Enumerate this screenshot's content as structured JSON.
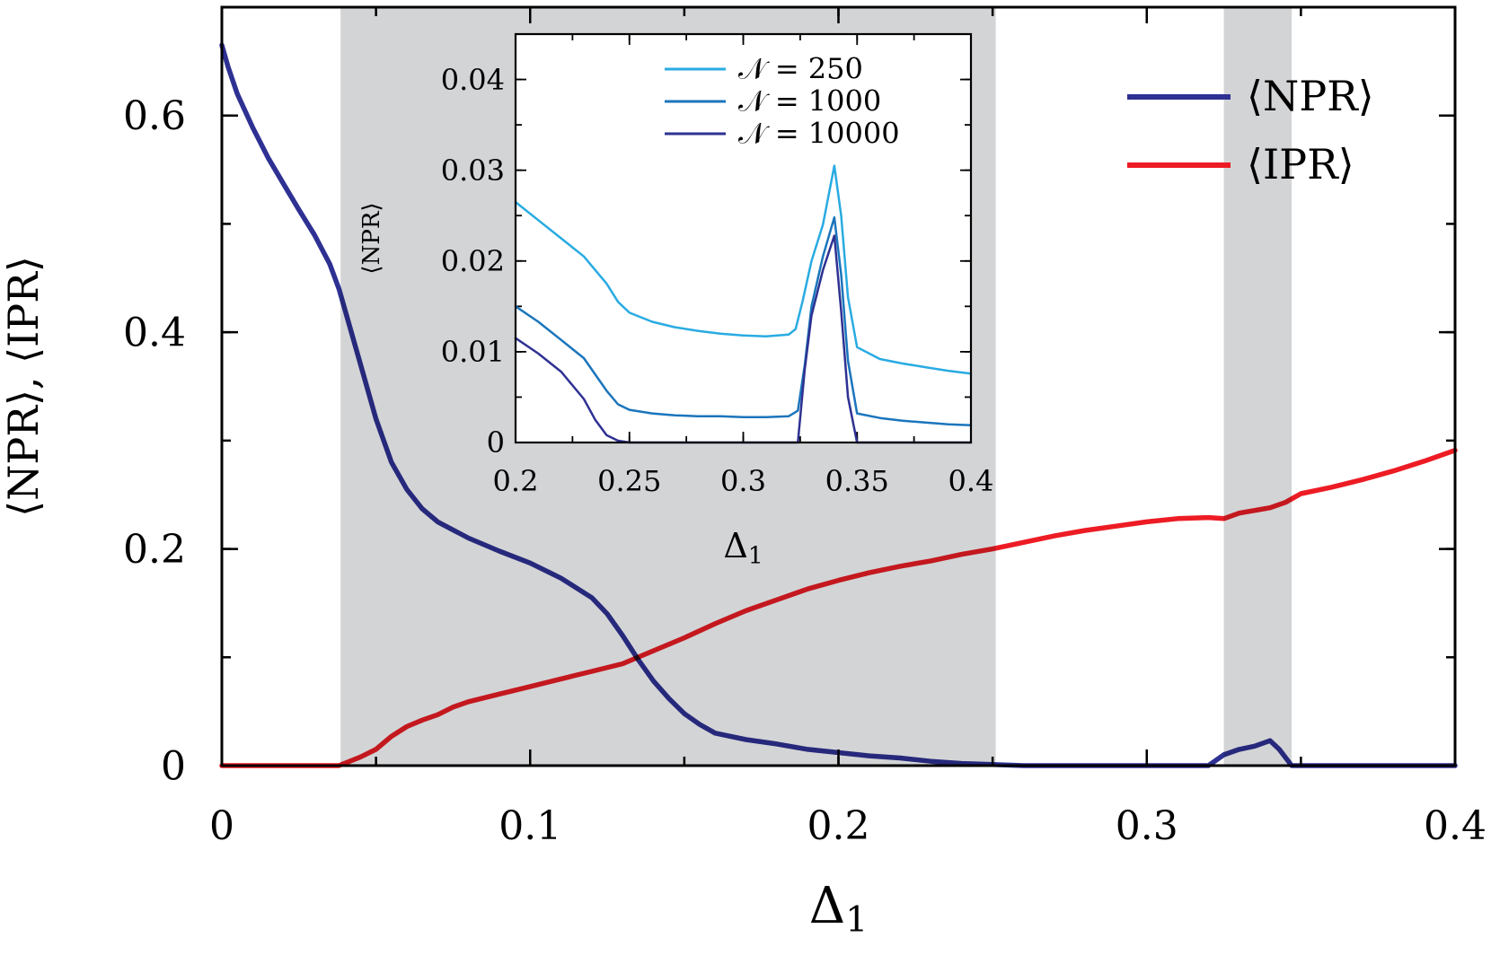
{
  "chart_data": [
    {
      "id": "main",
      "type": "line",
      "xlabel": "Δ1",
      "ylabel": "⟨NPR⟩, ⟨IPR⟩",
      "xlim": [
        0,
        0.4
      ],
      "ylim": [
        0,
        0.7
      ],
      "x_ticks": [
        0,
        0.1,
        0.2,
        0.3,
        0.4
      ],
      "x_tick_labels": [
        "0",
        "0.1",
        "0.2",
        "0.3",
        "0.4"
      ],
      "y_ticks": [
        0,
        0.2,
        0.4,
        0.6
      ],
      "y_tick_labels": [
        "0",
        "0.2",
        "0.4",
        "0.6"
      ],
      "shaded_regions": [
        [
          0.0385,
          0.251
        ],
        [
          0.325,
          0.347
        ]
      ],
      "shade_color": "#d3d4d6",
      "legend_position": "top-right",
      "series": [
        {
          "name": "⟨NPR⟩",
          "color": "#2e3192",
          "points": [
            [
              0,
              0.665
            ],
            [
              0.002,
              0.645
            ],
            [
              0.005,
              0.62
            ],
            [
              0.01,
              0.589
            ],
            [
              0.015,
              0.561
            ],
            [
              0.02,
              0.537
            ],
            [
              0.025,
              0.513
            ],
            [
              0.03,
              0.49
            ],
            [
              0.035,
              0.463
            ],
            [
              0.038,
              0.44
            ],
            [
              0.04,
              0.42
            ],
            [
              0.045,
              0.37
            ],
            [
              0.05,
              0.32
            ],
            [
              0.055,
              0.28
            ],
            [
              0.06,
              0.255
            ],
            [
              0.065,
              0.237
            ],
            [
              0.07,
              0.225
            ],
            [
              0.08,
              0.21
            ],
            [
              0.09,
              0.198
            ],
            [
              0.1,
              0.187
            ],
            [
              0.11,
              0.173
            ],
            [
              0.12,
              0.155
            ],
            [
              0.125,
              0.14
            ],
            [
              0.13,
              0.12
            ],
            [
              0.135,
              0.098
            ],
            [
              0.14,
              0.078
            ],
            [
              0.145,
              0.062
            ],
            [
              0.15,
              0.048
            ],
            [
              0.155,
              0.038
            ],
            [
              0.16,
              0.03
            ],
            [
              0.17,
              0.024
            ],
            [
              0.18,
              0.02
            ],
            [
              0.19,
              0.015
            ],
            [
              0.2,
              0.012
            ],
            [
              0.21,
              0.009
            ],
            [
              0.22,
              0.007
            ],
            [
              0.23,
              0.004
            ],
            [
              0.24,
              0.002
            ],
            [
              0.25,
              0.001
            ],
            [
              0.26,
              0.0
            ],
            [
              0.32,
              0.0
            ],
            [
              0.325,
              0.01
            ],
            [
              0.33,
              0.015
            ],
            [
              0.335,
              0.018
            ],
            [
              0.34,
              0.023
            ],
            [
              0.343,
              0.015
            ],
            [
              0.347,
              0.0
            ],
            [
              0.4,
              0.0
            ]
          ]
        },
        {
          "name": "⟨IPR⟩",
          "color": "#ed1c24",
          "points": [
            [
              0,
              0.0
            ],
            [
              0.038,
              0.0
            ],
            [
              0.045,
              0.008
            ],
            [
              0.05,
              0.015
            ],
            [
              0.055,
              0.027
            ],
            [
              0.06,
              0.036
            ],
            [
              0.065,
              0.042
            ],
            [
              0.07,
              0.047
            ],
            [
              0.075,
              0.054
            ],
            [
              0.08,
              0.059
            ],
            [
              0.09,
              0.066
            ],
            [
              0.1,
              0.073
            ],
            [
              0.11,
              0.08
            ],
            [
              0.12,
              0.087
            ],
            [
              0.13,
              0.094
            ],
            [
              0.14,
              0.106
            ],
            [
              0.15,
              0.118
            ],
            [
              0.16,
              0.131
            ],
            [
              0.17,
              0.143
            ],
            [
              0.18,
              0.153
            ],
            [
              0.19,
              0.163
            ],
            [
              0.2,
              0.171
            ],
            [
              0.21,
              0.178
            ],
            [
              0.22,
              0.184
            ],
            [
              0.23,
              0.189
            ],
            [
              0.24,
              0.195
            ],
            [
              0.25,
              0.2
            ],
            [
              0.26,
              0.206
            ],
            [
              0.27,
              0.212
            ],
            [
              0.28,
              0.217
            ],
            [
              0.29,
              0.221
            ],
            [
              0.3,
              0.225
            ],
            [
              0.31,
              0.228
            ],
            [
              0.32,
              0.229
            ],
            [
              0.325,
              0.228
            ],
            [
              0.33,
              0.233
            ],
            [
              0.34,
              0.238
            ],
            [
              0.345,
              0.243
            ],
            [
              0.35,
              0.251
            ],
            [
              0.36,
              0.257
            ],
            [
              0.37,
              0.264
            ],
            [
              0.38,
              0.272
            ],
            [
              0.39,
              0.281
            ],
            [
              0.4,
              0.291
            ]
          ]
        }
      ]
    },
    {
      "id": "inset",
      "type": "line",
      "xlabel": "Δ1",
      "ylabel": "⟨NPR⟩",
      "xlim": [
        0.2,
        0.4
      ],
      "ylim": [
        0,
        0.045
      ],
      "x_ticks": [
        0.2,
        0.25,
        0.3,
        0.35,
        0.4
      ],
      "x_tick_labels": [
        "0.2",
        "0.25",
        "0.3",
        "0.35",
        "0.4"
      ],
      "y_ticks": [
        0,
        0.01,
        0.02,
        0.03,
        0.04
      ],
      "y_tick_labels": [
        "0",
        "0.01",
        "0.02",
        "0.03",
        "0.04"
      ],
      "legend_position": "top-center",
      "series": [
        {
          "name": "𝒩 = 250",
          "color": "#29abe2",
          "points": [
            [
              0.2,
              0.0265
            ],
            [
              0.21,
              0.0245
            ],
            [
              0.22,
              0.0225
            ],
            [
              0.23,
              0.0205
            ],
            [
              0.24,
              0.0175
            ],
            [
              0.245,
              0.0155
            ],
            [
              0.25,
              0.0143
            ],
            [
              0.26,
              0.0133
            ],
            [
              0.27,
              0.0127
            ],
            [
              0.28,
              0.0123
            ],
            [
              0.29,
              0.012
            ],
            [
              0.3,
              0.0118
            ],
            [
              0.31,
              0.0117
            ],
            [
              0.32,
              0.0119
            ],
            [
              0.323,
              0.0125
            ],
            [
              0.326,
              0.0155
            ],
            [
              0.33,
              0.02
            ],
            [
              0.335,
              0.024
            ],
            [
              0.34,
              0.0305
            ],
            [
              0.343,
              0.025
            ],
            [
              0.346,
              0.016
            ],
            [
              0.35,
              0.0105
            ],
            [
              0.36,
              0.0092
            ],
            [
              0.37,
              0.0087
            ],
            [
              0.38,
              0.0083
            ],
            [
              0.39,
              0.0079
            ],
            [
              0.4,
              0.0076
            ]
          ]
        },
        {
          "name": "𝒩 = 1000",
          "color": "#1b75bc",
          "points": [
            [
              0.2,
              0.015
            ],
            [
              0.21,
              0.0133
            ],
            [
              0.22,
              0.0113
            ],
            [
              0.23,
              0.0093
            ],
            [
              0.24,
              0.0057
            ],
            [
              0.245,
              0.0042
            ],
            [
              0.25,
              0.0036
            ],
            [
              0.26,
              0.0032
            ],
            [
              0.27,
              0.003
            ],
            [
              0.28,
              0.0029
            ],
            [
              0.29,
              0.0029
            ],
            [
              0.3,
              0.0028
            ],
            [
              0.31,
              0.0028
            ],
            [
              0.32,
              0.0029
            ],
            [
              0.324,
              0.0035
            ],
            [
              0.327,
              0.0085
            ],
            [
              0.33,
              0.015
            ],
            [
              0.335,
              0.0205
            ],
            [
              0.34,
              0.0248
            ],
            [
              0.343,
              0.0185
            ],
            [
              0.346,
              0.009
            ],
            [
              0.35,
              0.0032
            ],
            [
              0.36,
              0.0027
            ],
            [
              0.37,
              0.0024
            ],
            [
              0.38,
              0.0022
            ],
            [
              0.39,
              0.002
            ],
            [
              0.4,
              0.0019
            ]
          ]
        },
        {
          "name": "𝒩 = 10000",
          "color": "#2e3192",
          "points": [
            [
              0.2,
              0.0115
            ],
            [
              0.21,
              0.0098
            ],
            [
              0.22,
              0.0078
            ],
            [
              0.23,
              0.0048
            ],
            [
              0.235,
              0.0025
            ],
            [
              0.24,
              0.0008
            ],
            [
              0.245,
              0.0002
            ],
            [
              0.25,
              0.0
            ],
            [
              0.3,
              0.0
            ],
            [
              0.324,
              0.0
            ],
            [
              0.327,
              0.008
            ],
            [
              0.33,
              0.014
            ],
            [
              0.335,
              0.019
            ],
            [
              0.34,
              0.0228
            ],
            [
              0.343,
              0.0145
            ],
            [
              0.346,
              0.005
            ],
            [
              0.35,
              0.0
            ],
            [
              0.4,
              0.0
            ]
          ]
        }
      ]
    }
  ]
}
